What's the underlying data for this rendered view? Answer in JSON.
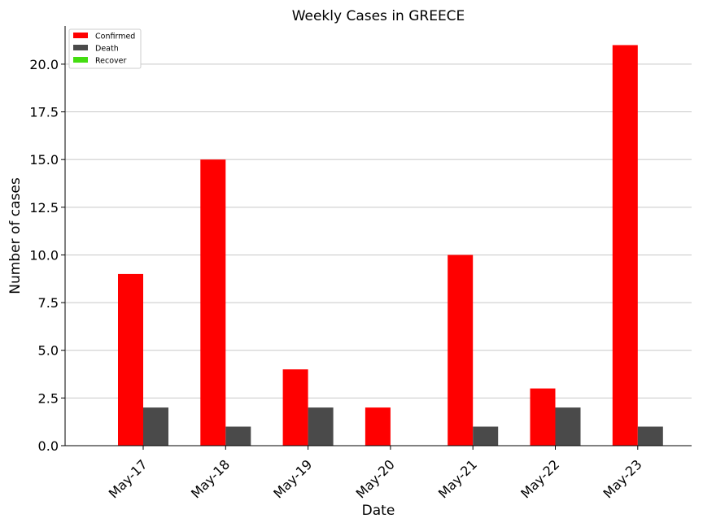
{
  "chart_data": {
    "type": "bar",
    "title": "Weekly Cases in GREECE",
    "xlabel": "Date",
    "ylabel": "Number of cases",
    "categories": [
      "May-17",
      "May-18",
      "May-19",
      "May-20",
      "May-21",
      "May-22",
      "May-23"
    ],
    "series": [
      {
        "name": "Confirmed",
        "color": "#ff0000",
        "values": [
          9,
          15,
          4,
          2,
          10,
          3,
          21
        ]
      },
      {
        "name": "Death",
        "color": "#4a4a4a",
        "values": [
          2,
          1,
          2,
          0,
          1,
          2,
          1
        ]
      },
      {
        "name": "Recover",
        "color": "#44dd11",
        "values": [
          0,
          0,
          0,
          0,
          0,
          0,
          0
        ]
      }
    ],
    "ylim": [
      0,
      22
    ],
    "yticks": [
      "0.0",
      "2.5",
      "5.0",
      "7.5",
      "10.0",
      "12.5",
      "15.0",
      "17.5",
      "20.0"
    ],
    "grid": "horizontal",
    "legend_position": "top-left"
  }
}
